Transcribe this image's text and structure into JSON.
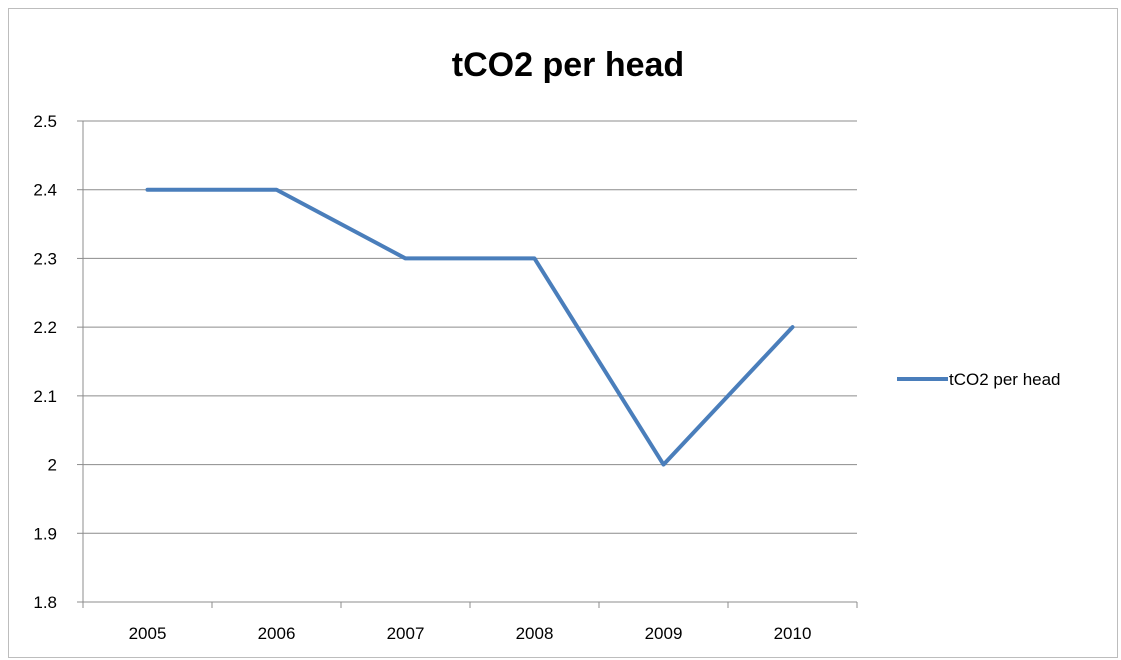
{
  "chart_data": {
    "type": "line",
    "title": "tCO2 per head",
    "categories": [
      "2005",
      "2006",
      "2007",
      "2008",
      "2009",
      "2010"
    ],
    "series": [
      {
        "name": "tCO2 per head",
        "values": [
          2.4,
          2.4,
          2.3,
          2.3,
          2.0,
          2.2
        ],
        "color": "#4a7ebb"
      }
    ],
    "ylim": [
      1.8,
      2.5
    ],
    "yticks": [
      "1.8",
      "1.9",
      "2",
      "2.1",
      "2.2",
      "2.3",
      "2.4",
      "2.5"
    ],
    "grid": true,
    "legend": "right"
  }
}
